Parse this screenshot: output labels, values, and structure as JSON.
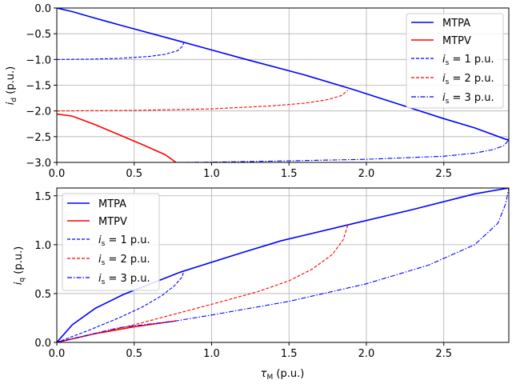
{
  "chart_data": [
    {
      "type": "line",
      "ylabel_main": "i",
      "ylabel_sub": "d",
      "ylabel_unit": " (p.u.)",
      "xlabel_main": "",
      "xlabel_sub": "",
      "xlabel_unit": "",
      "xlim": [
        0,
        2.92
      ],
      "ylim": [
        -3.0,
        0.0
      ],
      "xticks": [
        0,
        0.5,
        1.0,
        1.5,
        2.0,
        2.5
      ],
      "xtick_labels": [
        "0.0",
        "0.5",
        "1.0",
        "1.5",
        "2.0",
        "2.5"
      ],
      "yticks": [
        0,
        -0.5,
        -1.0,
        -1.5,
        -2.0,
        -2.5,
        -3.0
      ],
      "ytick_labels": [
        "0.0",
        "−0.5",
        "−1.0",
        "−1.5",
        "−2.0",
        "−2.5",
        "−3.0"
      ],
      "grid": true,
      "legend_position": "top-right",
      "series": [
        {
          "name": "MTPA",
          "color": "#0000ff",
          "style": "solid",
          "points": [
            [
              0,
              0
            ],
            [
              0.1,
              -0.07
            ],
            [
              0.25,
              -0.2
            ],
            [
              0.43,
              -0.35
            ],
            [
              0.8,
              -0.65
            ],
            [
              1.2,
              -0.98
            ],
            [
              1.6,
              -1.3
            ],
            [
              1.9,
              -1.57
            ],
            [
              2.2,
              -1.86
            ],
            [
              2.5,
              -2.15
            ],
            [
              2.7,
              -2.33
            ],
            [
              2.9,
              -2.55
            ],
            [
              2.92,
              -2.56
            ]
          ]
        },
        {
          "name": "MTPV",
          "color": "#ff0000",
          "style": "solid",
          "points": [
            [
              0,
              -2.06
            ],
            [
              0.1,
              -2.1
            ],
            [
              0.25,
              -2.27
            ],
            [
              0.4,
              -2.46
            ],
            [
              0.55,
              -2.65
            ],
            [
              0.7,
              -2.85
            ],
            [
              0.77,
              -3.0
            ]
          ]
        },
        {
          "name": "is1",
          "color": "#0000ff",
          "style": "dashed",
          "points": [
            [
              0,
              -1.0
            ],
            [
              0.2,
              -0.995
            ],
            [
              0.4,
              -0.98
            ],
            [
              0.6,
              -0.94
            ],
            [
              0.7,
              -0.9
            ],
            [
              0.78,
              -0.83
            ],
            [
              0.81,
              -0.75
            ],
            [
              0.82,
              -0.68
            ]
          ]
        },
        {
          "name": "is2",
          "color": "#ff0000",
          "style": "dashed",
          "points": [
            [
              0,
              -2.0
            ],
            [
              0.5,
              -1.99
            ],
            [
              1.0,
              -1.96
            ],
            [
              1.4,
              -1.9
            ],
            [
              1.6,
              -1.85
            ],
            [
              1.75,
              -1.78
            ],
            [
              1.84,
              -1.7
            ],
            [
              1.88,
              -1.6
            ]
          ]
        },
        {
          "name": "is3",
          "color": "#0000ff",
          "style": "dashdot",
          "points": [
            [
              0.77,
              -3.0
            ],
            [
              1.0,
              -2.995
            ],
            [
              1.5,
              -2.97
            ],
            [
              2.0,
              -2.94
            ],
            [
              2.5,
              -2.88
            ],
            [
              2.7,
              -2.82
            ],
            [
              2.82,
              -2.75
            ],
            [
              2.89,
              -2.67
            ],
            [
              2.92,
              -2.56
            ]
          ]
        }
      ]
    },
    {
      "type": "line",
      "ylabel_main": "i",
      "ylabel_sub": "q",
      "ylabel_unit": " (p.u.)",
      "xlabel_main": "τ",
      "xlabel_sub": "M",
      "xlabel_unit": " (p.u.)",
      "xlim": [
        0,
        2.92
      ],
      "ylim": [
        0.0,
        1.58
      ],
      "xticks": [
        0,
        0.5,
        1.0,
        1.5,
        2.0,
        2.5
      ],
      "xtick_labels": [
        "0.0",
        "0.5",
        "1.0",
        "1.5",
        "2.0",
        "2.5"
      ],
      "yticks": [
        0,
        0.5,
        1.0,
        1.5
      ],
      "ytick_labels": [
        "0.0",
        "0.5",
        "1.0",
        "1.5"
      ],
      "grid": true,
      "legend_position": "top-left",
      "series": [
        {
          "name": "MTPA",
          "color": "#0000ff",
          "style": "solid",
          "points": [
            [
              0,
              0
            ],
            [
              0.1,
              0.18
            ],
            [
              0.25,
              0.35
            ],
            [
              0.43,
              0.49
            ],
            [
              0.8,
              0.72
            ],
            [
              1.2,
              0.92
            ],
            [
              1.45,
              1.04
            ],
            [
              1.9,
              1.21
            ],
            [
              2.3,
              1.36
            ],
            [
              2.7,
              1.52
            ],
            [
              2.92,
              1.58
            ]
          ]
        },
        {
          "name": "MTPV",
          "color": "#ff0000",
          "style": "solid",
          "points": [
            [
              0,
              0
            ],
            [
              0.25,
              0.09
            ],
            [
              0.5,
              0.16
            ],
            [
              0.77,
              0.22
            ]
          ]
        },
        {
          "name": "is1",
          "color": "#0000ff",
          "style": "dashed",
          "points": [
            [
              0,
              0
            ],
            [
              0.2,
              0.12
            ],
            [
              0.4,
              0.25
            ],
            [
              0.55,
              0.36
            ],
            [
              0.68,
              0.48
            ],
            [
              0.76,
              0.58
            ],
            [
              0.81,
              0.67
            ],
            [
              0.82,
              0.73
            ]
          ]
        },
        {
          "name": "is2",
          "color": "#ff0000",
          "style": "dashed",
          "points": [
            [
              0,
              0
            ],
            [
              0.5,
              0.18
            ],
            [
              1.0,
              0.39
            ],
            [
              1.3,
              0.52
            ],
            [
              1.5,
              0.63
            ],
            [
              1.65,
              0.75
            ],
            [
              1.78,
              0.9
            ],
            [
              1.85,
              1.05
            ],
            [
              1.88,
              1.2
            ]
          ]
        },
        {
          "name": "is3",
          "color": "#0000ff",
          "style": "dashdot",
          "points": [
            [
              0,
              0
            ],
            [
              0.4,
              0.15
            ],
            [
              0.77,
              0.22
            ],
            [
              1.0,
              0.28
            ],
            [
              1.5,
              0.42
            ],
            [
              2.0,
              0.6
            ],
            [
              2.4,
              0.79
            ],
            [
              2.7,
              1.0
            ],
            [
              2.85,
              1.22
            ],
            [
              2.9,
              1.42
            ],
            [
              2.92,
              1.58
            ]
          ]
        }
      ]
    }
  ],
  "legend": {
    "mtpa": "MTPA",
    "mtpv": "MTPV",
    "is_sym": "i",
    "is_sub": "s",
    "is1": " =  1 p.u.",
    "is2": " =  2 p.u.",
    "is3": " =  3 p.u."
  },
  "colors": {
    "blue": "#0000ff",
    "red": "#ff0000",
    "grid": "#b0b0b0"
  }
}
